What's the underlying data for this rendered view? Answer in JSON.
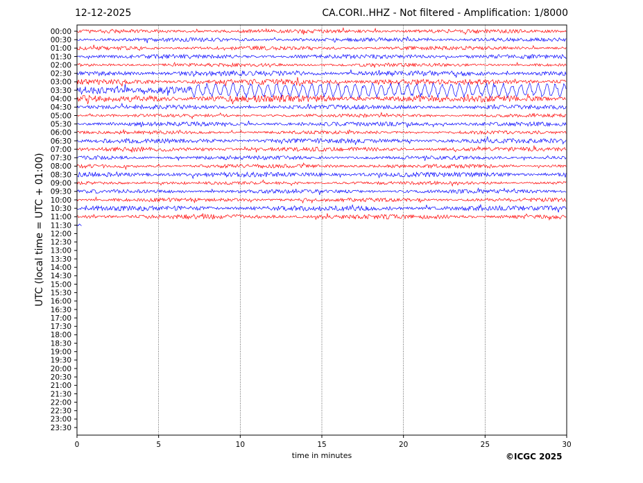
{
  "header": {
    "date": "12-12-2025",
    "title": "CA.CORI..HHZ - Not filtered - Amplification: 1/8000"
  },
  "footer": {
    "copyright": "©ICGC 2025"
  },
  "chart_data": {
    "type": "line",
    "title": "CA.CORI..HHZ - Not filtered - Amplification: 1/8000",
    "xlabel": "time in minutes",
    "ylabel": "UTC (local time = UTC + 01:00)",
    "xlim": [
      0,
      30
    ],
    "x_ticks": [
      0,
      5,
      10,
      15,
      20,
      25,
      30
    ],
    "y_tick_labels": [
      "00:00",
      "00:30",
      "01:00",
      "01:30",
      "02:00",
      "02:30",
      "03:00",
      "03:30",
      "04:00",
      "04:30",
      "05:00",
      "05:30",
      "06:00",
      "06:30",
      "07:00",
      "07:30",
      "08:00",
      "08:30",
      "09:00",
      "09:30",
      "10:00",
      "10:30",
      "11:00",
      "11:30",
      "12:00",
      "12:30",
      "13:00",
      "13:30",
      "14:00",
      "14:30",
      "15:00",
      "15:30",
      "16:00",
      "16:30",
      "17:00",
      "17:30",
      "18:00",
      "18:30",
      "19:00",
      "19:30",
      "20:00",
      "20:30",
      "21:00",
      "21:30",
      "22:00",
      "22:30",
      "23:00",
      "23:30"
    ],
    "grid": "vertical dotted at x ticks",
    "colors": {
      "odd_rows": "#ff0000",
      "even_rows": "#0000ff"
    },
    "series": [
      {
        "row": "00:00",
        "color": "#ff0000",
        "duration_min": 30,
        "amplitude": 0.25
      },
      {
        "row": "00:30",
        "color": "#0000ff",
        "duration_min": 30,
        "amplitude": 0.25
      },
      {
        "row": "01:00",
        "color": "#ff0000",
        "duration_min": 30,
        "amplitude": 0.25
      },
      {
        "row": "01:30",
        "color": "#0000ff",
        "duration_min": 30,
        "amplitude": 0.28
      },
      {
        "row": "02:00",
        "color": "#ff0000",
        "duration_min": 30,
        "amplitude": 0.22
      },
      {
        "row": "02:30",
        "color": "#0000ff",
        "duration_min": 30,
        "amplitude": 0.35
      },
      {
        "row": "03:00",
        "color": "#ff0000",
        "duration_min": 30,
        "amplitude": 0.35
      },
      {
        "row": "03:30",
        "color": "#0000ff",
        "duration_min": 30,
        "amplitude": 0.6,
        "event": {
          "start_min": 7,
          "end_min": 30,
          "amplitude": 1.3
        }
      },
      {
        "row": "04:00",
        "color": "#ff0000",
        "duration_min": 30,
        "amplitude": 0.45
      },
      {
        "row": "04:30",
        "color": "#0000ff",
        "duration_min": 30,
        "amplitude": 0.28
      },
      {
        "row": "05:00",
        "color": "#ff0000",
        "duration_min": 30,
        "amplitude": 0.22
      },
      {
        "row": "05:30",
        "color": "#0000ff",
        "duration_min": 30,
        "amplitude": 0.28
      },
      {
        "row": "06:00",
        "color": "#ff0000",
        "duration_min": 30,
        "amplitude": 0.22
      },
      {
        "row": "06:30",
        "color": "#0000ff",
        "duration_min": 30,
        "amplitude": 0.3
      },
      {
        "row": "07:00",
        "color": "#ff0000",
        "duration_min": 30,
        "amplitude": 0.28
      },
      {
        "row": "07:30",
        "color": "#0000ff",
        "duration_min": 30,
        "amplitude": 0.25
      },
      {
        "row": "08:00",
        "color": "#ff0000",
        "duration_min": 30,
        "amplitude": 0.25
      },
      {
        "row": "08:30",
        "color": "#0000ff",
        "duration_min": 30,
        "amplitude": 0.32
      },
      {
        "row": "09:00",
        "color": "#ff0000",
        "duration_min": 30,
        "amplitude": 0.22
      },
      {
        "row": "09:30",
        "color": "#0000ff",
        "duration_min": 30,
        "amplitude": 0.25
      },
      {
        "row": "10:00",
        "color": "#ff0000",
        "duration_min": 30,
        "amplitude": 0.25
      },
      {
        "row": "10:30",
        "color": "#0000ff",
        "duration_min": 30,
        "amplitude": 0.33
      },
      {
        "row": "11:00",
        "color": "#ff0000",
        "duration_min": 30,
        "amplitude": 0.3
      },
      {
        "row": "11:30",
        "color": "#0000ff",
        "duration_min": 0.3,
        "amplitude": 0.2
      }
    ]
  }
}
